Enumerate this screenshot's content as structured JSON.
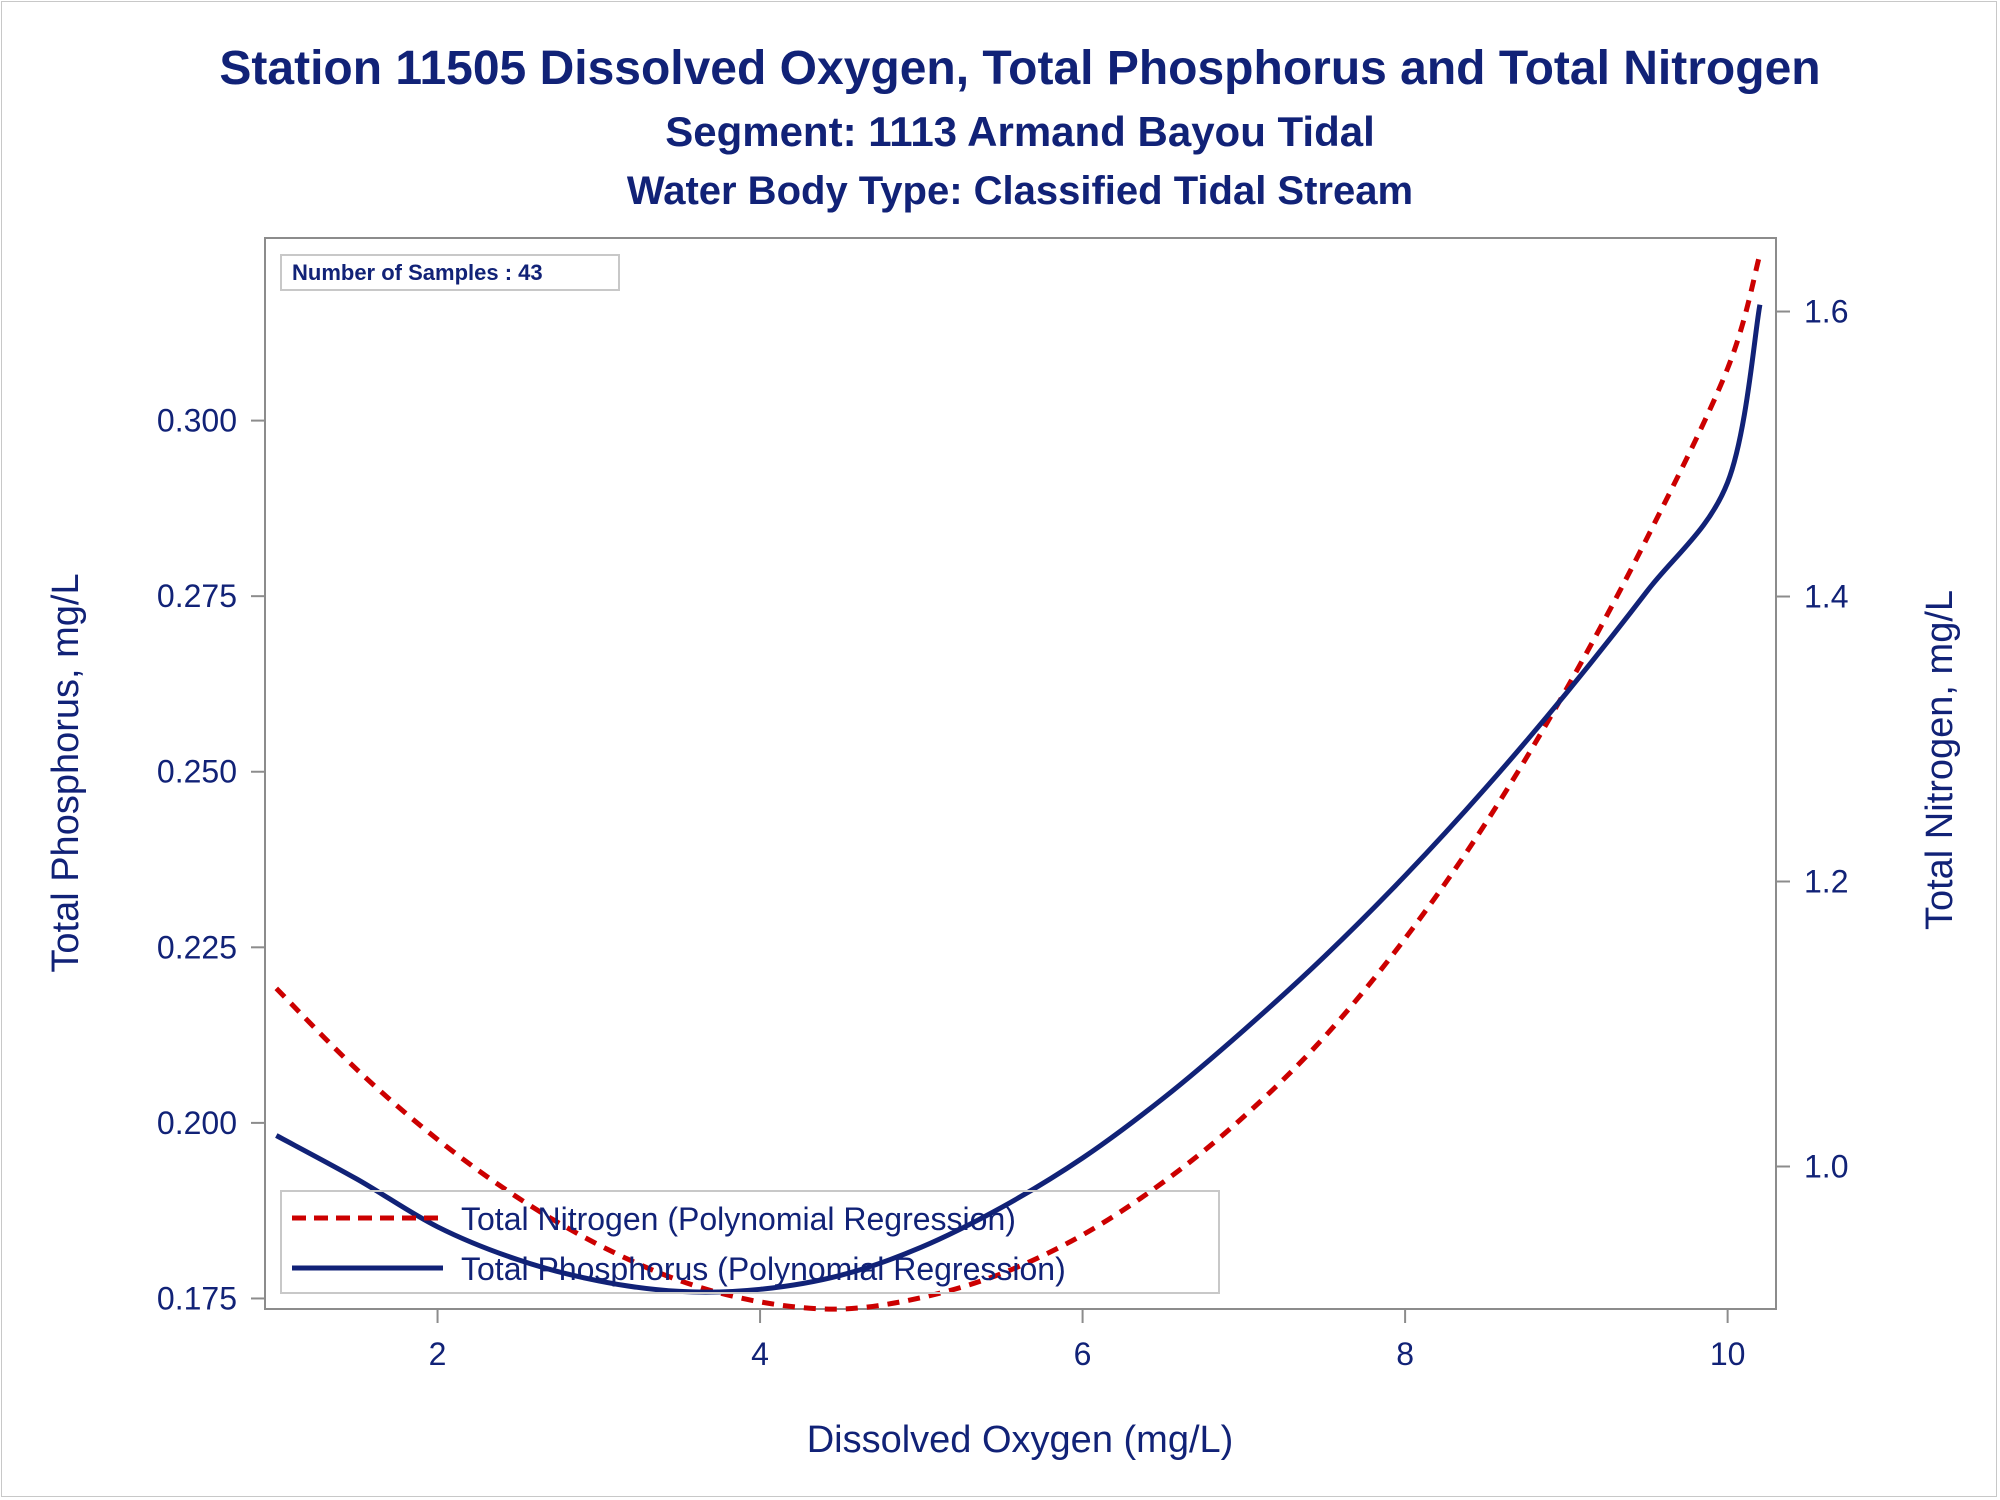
{
  "chart_data": {
    "type": "line",
    "title": "Station 11505  Dissolved Oxygen, Total Phosphorus and Total Nitrogen",
    "subtitle": "Segment: 1113  Armand Bayou Tidal",
    "subtitle2": "Water Body Type: Classified Tidal Stream",
    "annotation": "Number of Samples : 43",
    "xlabel": "Dissolved Oxygen (mg/L)",
    "ylabel_left": "Total Phosphorus, mg/L",
    "ylabel_right": "Total Nitrogen, mg/L",
    "xlim": [
      0.93,
      10.3
    ],
    "ylim_left": [
      0.1735,
      0.326
    ],
    "ylim_right": [
      0.9,
      1.6516
    ],
    "xticks": [
      2,
      4,
      6,
      8,
      10
    ],
    "xtick_labels": [
      "2",
      "4",
      "6",
      "8",
      "10"
    ],
    "yticks_left": [
      0.175,
      0.2,
      0.225,
      0.25,
      0.275,
      0.3
    ],
    "yticks_left_labels": [
      "0.175",
      "0.200",
      "0.225",
      "0.250",
      "0.275",
      "0.300"
    ],
    "yticks_right": [
      1.0,
      1.2,
      1.4,
      1.6
    ],
    "yticks_right_labels": [
      "1.0",
      "1.2",
      "1.4",
      "1.6"
    ],
    "grid": false,
    "legend_position": "bottom-left",
    "series": [
      {
        "name": "Total Nitrogen (Polynomial Regression)",
        "axis": "right",
        "color": "#cc0000",
        "style": "dashed",
        "x": [
          1.0,
          1.5,
          2.0,
          2.5,
          3.0,
          3.5,
          4.0,
          4.5,
          5.0,
          5.5,
          6.0,
          6.5,
          7.0,
          7.5,
          8.0,
          8.5,
          9.0,
          9.5,
          10.0,
          10.2
        ],
        "values": [
          1.125,
          1.068,
          1.019,
          0.978,
          0.945,
          0.92,
          0.905,
          0.9,
          0.908,
          0.925,
          0.952,
          0.989,
          1.035,
          1.091,
          1.16,
          1.241,
          1.335,
          1.441,
          1.56,
          1.64
        ]
      },
      {
        "name": "Total Phosphorus (Polynomial Regression)",
        "axis": "left",
        "color": "#112277",
        "style": "solid",
        "x": [
          1.0,
          1.5,
          2.0,
          2.5,
          3.0,
          3.5,
          4.0,
          4.5,
          5.0,
          5.5,
          6.0,
          6.5,
          7.0,
          7.5,
          8.0,
          8.5,
          9.0,
          9.5,
          10.0,
          10.2
        ],
        "values": [
          0.1982,
          0.192,
          0.1852,
          0.1805,
          0.1775,
          0.176,
          0.1763,
          0.1783,
          0.1823,
          0.188,
          0.195,
          0.2035,
          0.2132,
          0.2237,
          0.2352,
          0.2477,
          0.2612,
          0.2757,
          0.2912,
          0.3165
        ]
      }
    ]
  }
}
